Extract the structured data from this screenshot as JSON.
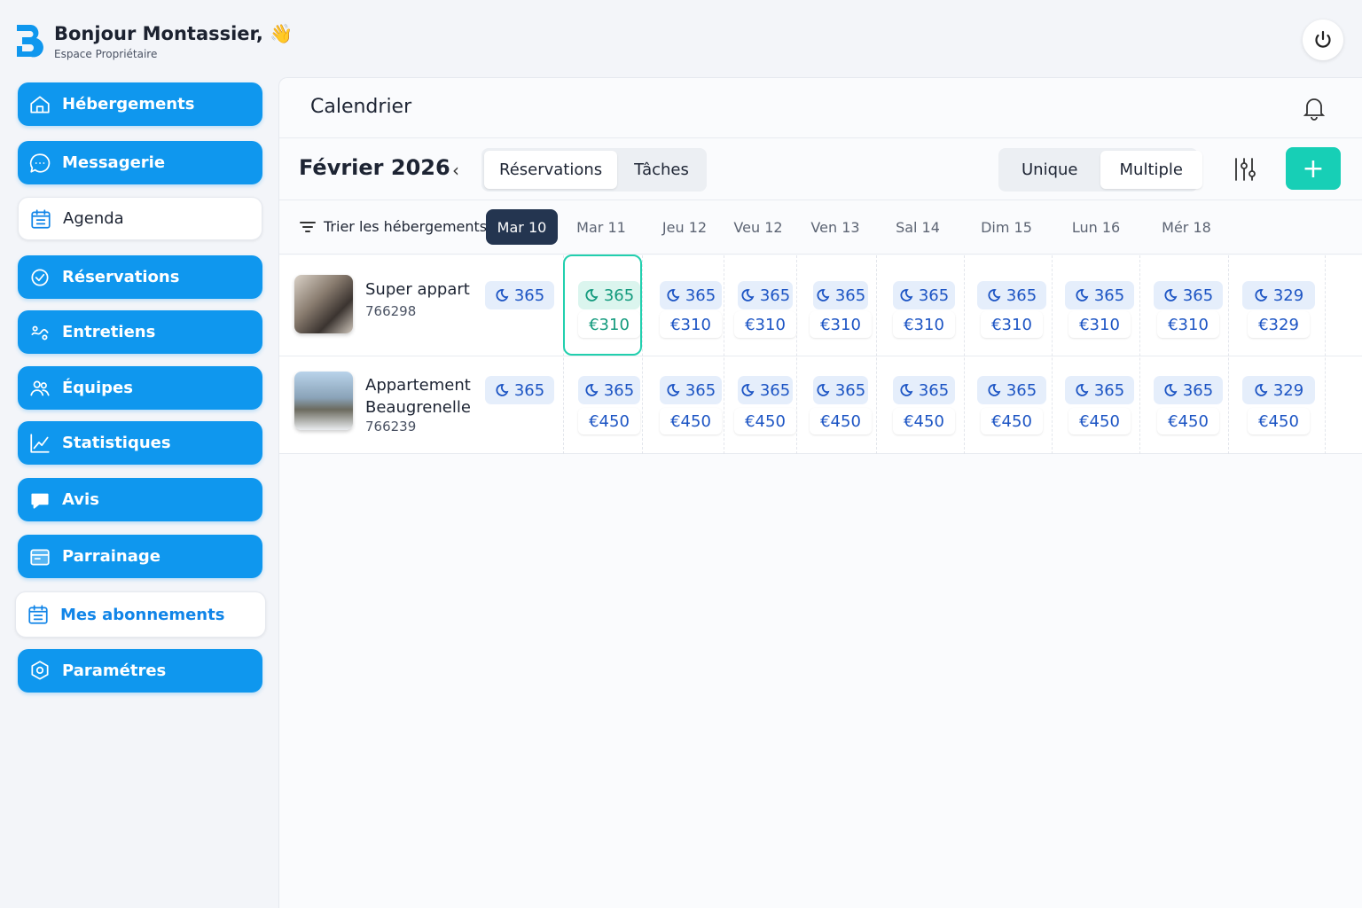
{
  "header": {
    "greeting": "Bonjour Montassier,",
    "subtitle": "Espace Propriétaire",
    "wave_emoji": "👋"
  },
  "sidebar": {
    "items": [
      {
        "label": "Hébergements",
        "icon": "home-icon",
        "style": "blue"
      },
      {
        "label": "Messagerie",
        "icon": "chat-icon",
        "style": "blue"
      },
      {
        "label": "Agenda",
        "icon": "calendar-icon",
        "style": "light"
      },
      {
        "label": "Réservations",
        "icon": "reservation-icon",
        "style": "blue"
      },
      {
        "label": "Entretiens",
        "icon": "maintenance-icon",
        "style": "blue"
      },
      {
        "label": "Équipes",
        "icon": "team-icon",
        "style": "blue"
      },
      {
        "label": "Statistiques",
        "icon": "chart-icon",
        "style": "blue"
      },
      {
        "label": "Avis",
        "icon": "review-icon",
        "style": "blue"
      },
      {
        "label": "Parrainage",
        "icon": "referral-icon",
        "style": "blue"
      },
      {
        "label": "Mes abonnements",
        "icon": "subscription-icon",
        "style": "light-blue"
      },
      {
        "label": "Paramétres",
        "icon": "settings-icon",
        "style": "blue"
      }
    ]
  },
  "main": {
    "title": "Calendrier",
    "month": "Février 2026",
    "view_tabs": [
      "Réservations",
      "Tâches"
    ],
    "active_view_tab": 0,
    "mode_tabs": [
      "Unique",
      "Multiple"
    ],
    "active_mode_tab": 1,
    "sort_label": "Trier les hébergements",
    "dates": [
      "Mar 10",
      "Mar 11",
      "Jeu 12",
      "Veu 12",
      "Ven 13",
      "Sal 14",
      "Dim 15",
      "Lun 16",
      "Mér 18"
    ],
    "selected_date": 0,
    "properties": [
      {
        "name": "Super appart",
        "id": "766298",
        "cells": [
          {
            "nights": "365"
          },
          {
            "nights": "365",
            "price": "€310",
            "selected": true
          },
          {
            "nights": "365",
            "price": "€310"
          },
          {
            "nights": "365",
            "price": "€310"
          },
          {
            "nights": "365",
            "price": "€310"
          },
          {
            "nights": "365",
            "price": "€310"
          },
          {
            "nights": "365",
            "price": "€310"
          },
          {
            "nights": "365",
            "price": "€310"
          },
          {
            "nights": "365",
            "price": "€310"
          },
          {
            "nights": "329",
            "price": "€329"
          }
        ]
      },
      {
        "name": "Appartement Beaugrenelle",
        "id": "766239",
        "cells": [
          {
            "nights": "365"
          },
          {
            "nights": "365",
            "price": "€450"
          },
          {
            "nights": "365",
            "price": "€450"
          },
          {
            "nights": "365",
            "price": "€450"
          },
          {
            "nights": "365",
            "price": "€450"
          },
          {
            "nights": "365",
            "price": "€450"
          },
          {
            "nights": "365",
            "price": "€450"
          },
          {
            "nights": "365",
            "price": "€450"
          },
          {
            "nights": "365",
            "price": "€450"
          },
          {
            "nights": "329",
            "price": "€450"
          }
        ]
      }
    ]
  },
  "colors": {
    "primary": "#0f97ee",
    "accent": "#17cfb6",
    "dark": "#243550",
    "nights_text": "#1d55c4"
  }
}
